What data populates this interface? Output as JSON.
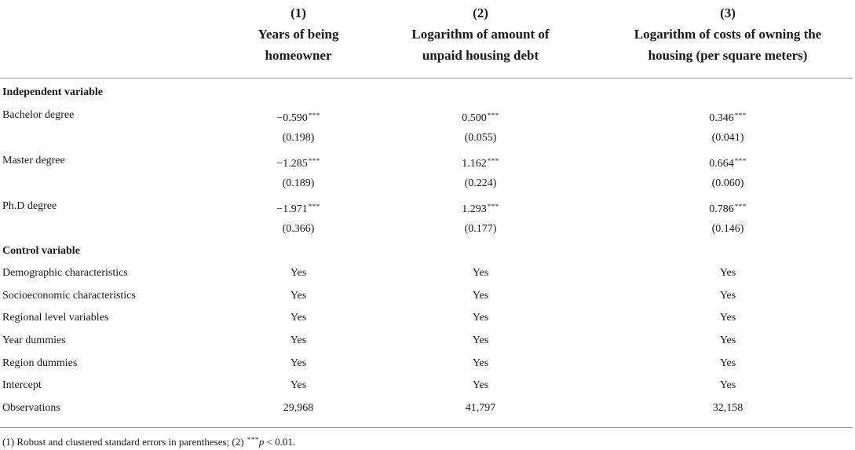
{
  "columns": [
    {
      "number": "(1)",
      "label": "Years of being\nhomeowner"
    },
    {
      "number": "(2)",
      "label": "Logarithm of amount of\nunpaid housing debt"
    },
    {
      "number": "(3)",
      "label": "Logarithm of costs of owning the\nhousing (per square meters)"
    }
  ],
  "sections": {
    "independent": "Independent variable",
    "control": "Control variable"
  },
  "independent_rows": [
    {
      "label": "Bachelor degree",
      "coef": [
        "−0.590",
        "0.500",
        "0.346"
      ],
      "se": [
        "(0.198)",
        "(0.055)",
        "(0.041)"
      ]
    },
    {
      "label": "Master degree",
      "coef": [
        "−1.285",
        "1.162",
        "0.664"
      ],
      "se": [
        "(0.189)",
        "(0.224)",
        "(0.060)"
      ]
    },
    {
      "label": "Ph.D degree",
      "coef": [
        "−1.971",
        "1.293",
        "0.786"
      ],
      "se": [
        "(0.366)",
        "(0.177)",
        "(0.146)"
      ]
    }
  ],
  "significance_mark": "***",
  "control_rows": [
    {
      "label": "Demographic characteristics",
      "values": [
        "Yes",
        "Yes",
        "Yes"
      ]
    },
    {
      "label": "Socioeconomic characteristics",
      "values": [
        "Yes",
        "Yes",
        "Yes"
      ]
    },
    {
      "label": "Regional level variables",
      "values": [
        "Yes",
        "Yes",
        "Yes"
      ]
    },
    {
      "label": "Year dummies",
      "values": [
        "Yes",
        "Yes",
        "Yes"
      ]
    },
    {
      "label": "Region dummies",
      "values": [
        "Yes",
        "Yes",
        "Yes"
      ]
    },
    {
      "label": "Intercept",
      "values": [
        "Yes",
        "Yes",
        "Yes"
      ]
    },
    {
      "label": "Observations",
      "values": [
        "29,968",
        "41,797",
        "32,158"
      ]
    }
  ],
  "footnote": {
    "prefix": "(1) Robust and clustered standard errors in parentheses; (2) ",
    "stars": "***",
    "p": "p",
    "suffix": " < 0.01."
  }
}
